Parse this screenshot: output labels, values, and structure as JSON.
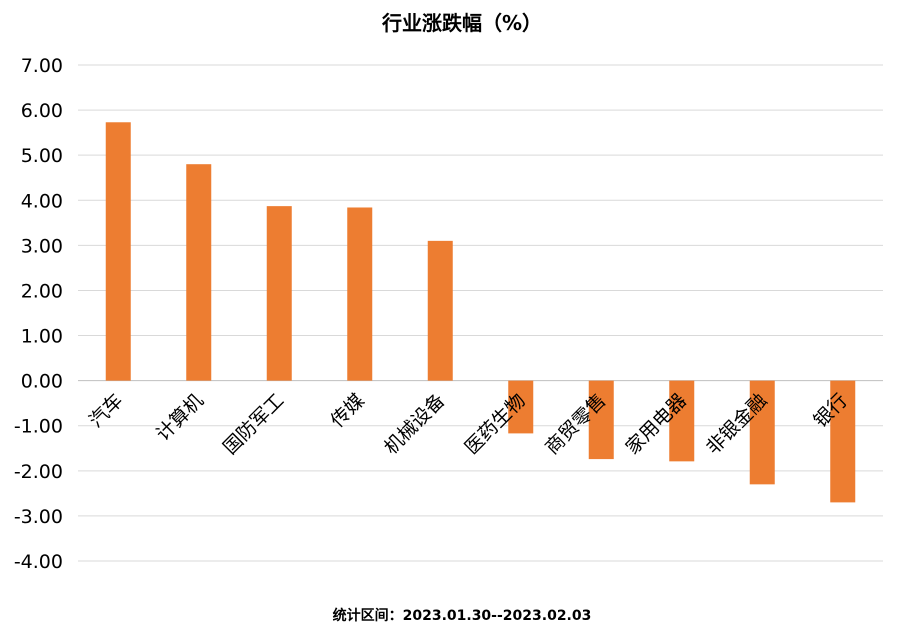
{
  "chart_data": {
    "type": "bar",
    "title": "行业涨跌幅（%）",
    "categories": [
      "汽车",
      "计算机",
      "国防军工",
      "传媒",
      "机械设备",
      "医药生物",
      "商贸零售",
      "家用电器",
      "非银金融",
      "银行"
    ],
    "values": [
      5.73,
      4.8,
      3.87,
      3.84,
      3.1,
      -1.17,
      -1.74,
      -1.79,
      -2.3,
      -2.7
    ],
    "ylim": [
      -4,
      7
    ],
    "yticks": [
      "7.00",
      "6.00",
      "5.00",
      "4.00",
      "3.00",
      "2.00",
      "1.00",
      "0.00",
      "-1.00",
      "-2.00",
      "-3.00",
      "-4.00"
    ],
    "bar_color": "#ed7d31",
    "grid": true,
    "legend": "none"
  },
  "footnote": "统计区间：2023.01.30--2023.02.03"
}
